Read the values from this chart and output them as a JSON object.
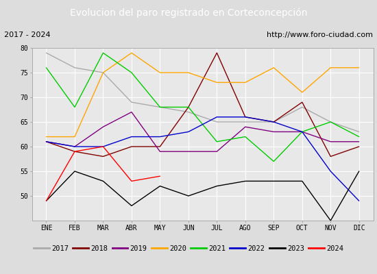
{
  "title": "Evolucion del paro registrado en Corteconcepción",
  "subtitle_left": "2017 - 2024",
  "subtitle_right": "http://www.foro-ciudad.com",
  "months": [
    "ENE",
    "FEB",
    "MAR",
    "ABR",
    "MAY",
    "JUN",
    "JUL",
    "AGO",
    "SEP",
    "OCT",
    "NOV",
    "DIC"
  ],
  "ylim": [
    45,
    80
  ],
  "yticks": [
    50,
    55,
    60,
    65,
    70,
    75,
    80
  ],
  "series": {
    "2017": {
      "color": "#aaaaaa",
      "values": [
        79,
        76,
        75,
        69,
        68,
        67,
        65,
        65,
        65,
        68,
        65,
        63
      ]
    },
    "2018": {
      "color": "#800000",
      "values": [
        61,
        59,
        58,
        60,
        60,
        68,
        79,
        66,
        65,
        69,
        58,
        60
      ]
    },
    "2019": {
      "color": "#800080",
      "values": [
        61,
        60,
        64,
        67,
        59,
        59,
        59,
        64,
        63,
        63,
        61,
        61
      ]
    },
    "2020": {
      "color": "#ffa500",
      "values": [
        62,
        62,
        75,
        79,
        75,
        75,
        73,
        73,
        76,
        71,
        76,
        76
      ]
    },
    "2021": {
      "color": "#00cc00",
      "values": [
        76,
        68,
        79,
        75,
        68,
        68,
        61,
        62,
        57,
        63,
        65,
        62
      ]
    },
    "2022": {
      "color": "#0000cc",
      "values": [
        61,
        60,
        60,
        62,
        62,
        63,
        66,
        66,
        65,
        63,
        55,
        49
      ]
    },
    "2023": {
      "color": "#000000",
      "values": [
        49,
        55,
        53,
        48,
        52,
        50,
        52,
        53,
        53,
        53,
        45,
        55
      ]
    },
    "2024": {
      "color": "#ff0000",
      "values": [
        49,
        59,
        60,
        53,
        54,
        null,
        null,
        null,
        null,
        null,
        null,
        null
      ]
    }
  },
  "title_bg": "#3a6bc4",
  "title_color": "#ffffff",
  "subtitle_bg": "#dddddd",
  "subtitle_color": "#000000",
  "fig_bg": "#dddddd",
  "plot_bg": "#e8e8e8",
  "grid_color": "#ffffff",
  "title_fontsize": 10,
  "subtitle_fontsize": 8,
  "tick_fontsize": 7,
  "legend_fontsize": 7.5
}
